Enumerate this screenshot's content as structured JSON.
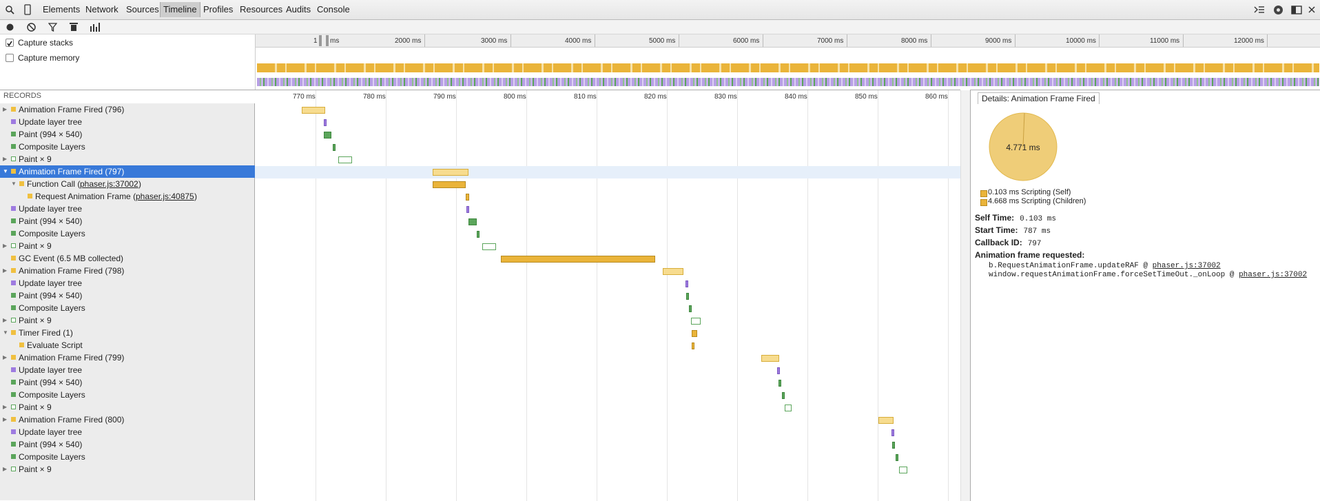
{
  "tabs": [
    "Elements",
    "Network",
    "Sources",
    "Timeline",
    "Profiles",
    "Resources",
    "Audits",
    "Console"
  ],
  "selected_tab": "Timeline",
  "options": {
    "capture_stacks": "Capture stacks",
    "capture_memory": "Capture memory"
  },
  "overview_ticks": [
    "1",
    "ms",
    "2000 ms",
    "3000 ms",
    "4000 ms",
    "5000 ms",
    "6000 ms",
    "7000 ms",
    "8000 ms",
    "9000 ms",
    "10000 ms",
    "11000 ms",
    "12000 ms"
  ],
  "records_header": "RECORDS",
  "records": [
    {
      "label": "Animation Frame Fired (796)",
      "color": "#f0c040",
      "expand": "right"
    },
    {
      "label": "Update layer tree",
      "color": "#9e7be0",
      "expand": ""
    },
    {
      "label": "Paint (994 × 540)",
      "color": "#5ba55b",
      "expand": ""
    },
    {
      "label": "Composite Layers",
      "color": "#5ba55b",
      "expand": ""
    },
    {
      "label": "Paint × 9",
      "color": "hollow",
      "expand": "right"
    },
    {
      "label": "Animation Frame Fired (797)",
      "color": "#f0c040",
      "expand": "down",
      "selected": true
    },
    {
      "label": "Function Call (",
      "link": "phaser.js:37002",
      "after": ")",
      "color": "#f0c040",
      "expand": "down",
      "indent": 1
    },
    {
      "label": "Request Animation Frame (",
      "link": "phaser.js:40875",
      "after": ")",
      "color": "#f0c040",
      "expand": "",
      "indent": 2
    },
    {
      "label": "Update layer tree",
      "color": "#9e7be0",
      "expand": ""
    },
    {
      "label": "Paint (994 × 540)",
      "color": "#5ba55b",
      "expand": ""
    },
    {
      "label": "Composite Layers",
      "color": "#5ba55b",
      "expand": ""
    },
    {
      "label": "Paint × 9",
      "color": "hollow",
      "expand": "right"
    },
    {
      "label": "GC Event (6.5 MB collected)",
      "color": "#f0c040",
      "expand": ""
    },
    {
      "label": "Animation Frame Fired (798)",
      "color": "#f0c040",
      "expand": "right"
    },
    {
      "label": "Update layer tree",
      "color": "#9e7be0",
      "expand": ""
    },
    {
      "label": "Paint (994 × 540)",
      "color": "#5ba55b",
      "expand": ""
    },
    {
      "label": "Composite Layers",
      "color": "#5ba55b",
      "expand": ""
    },
    {
      "label": "Paint × 9",
      "color": "hollow",
      "expand": "right"
    },
    {
      "label": "Timer Fired (1)",
      "color": "#f0c040",
      "expand": "down"
    },
    {
      "label": "Evaluate Script",
      "color": "#f0c040",
      "expand": "",
      "indent": 1
    },
    {
      "label": "Animation Frame Fired (799)",
      "color": "#f0c040",
      "expand": "right"
    },
    {
      "label": "Update layer tree",
      "color": "#9e7be0",
      "expand": ""
    },
    {
      "label": "Paint (994 × 540)",
      "color": "#5ba55b",
      "expand": ""
    },
    {
      "label": "Composite Layers",
      "color": "#5ba55b",
      "expand": ""
    },
    {
      "label": "Paint × 9",
      "color": "hollow",
      "expand": "right"
    },
    {
      "label": "Animation Frame Fired (800)",
      "color": "#f0c040",
      "expand": "right"
    },
    {
      "label": "Update layer tree",
      "color": "#9e7be0",
      "expand": ""
    },
    {
      "label": "Paint (994 × 540)",
      "color": "#5ba55b",
      "expand": ""
    },
    {
      "label": "Composite Layers",
      "color": "#5ba55b",
      "expand": ""
    },
    {
      "label": "Paint × 9",
      "color": "hollow",
      "expand": "right"
    }
  ],
  "timeline_ticks": [
    "770 ms",
    "780 ms",
    "790 ms",
    "800 ms",
    "810 ms",
    "820 ms",
    "830 ms",
    "840 ms",
    "850 ms",
    "860 ms"
  ],
  "details": {
    "tab": "Details: Animation Frame Fired",
    "pie_label": "4.771 ms",
    "legend_self": "0.103 ms Scripting (Self)",
    "legend_children": "4.668 ms Scripting (Children)",
    "self_time_label": "Self Time:",
    "self_time": "0.103 ms",
    "start_time_label": "Start Time:",
    "start_time": "787 ms",
    "callback_id_label": "Callback ID:",
    "callback_id": "797",
    "requested_label": "Animation frame requested:",
    "stack1": "b.RequestAnimationFrame.updateRAF @ ",
    "stack1_link": "phaser.js:37002",
    "stack2": "window.requestAnimationFrame.forceSetTimeOut._onLoop @ ",
    "stack2_link": "phaser.js:37002"
  },
  "colors": {
    "scripting": "#f0c040",
    "rendering": "#9e7be0",
    "painting": "#5ba55b",
    "selection": "#3879d9"
  }
}
